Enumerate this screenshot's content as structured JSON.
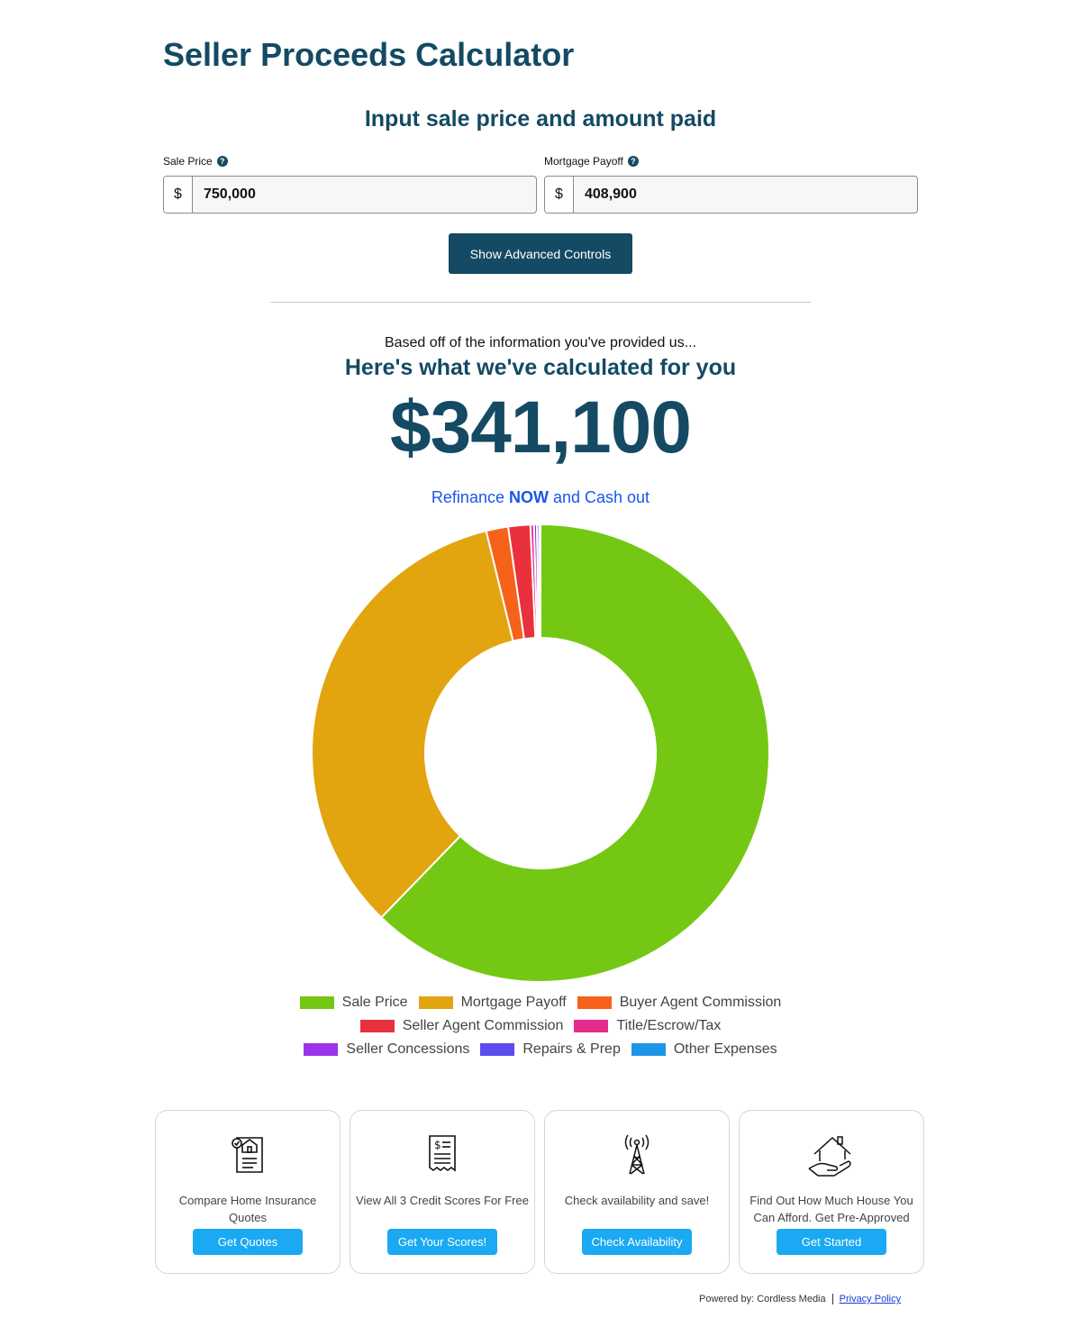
{
  "page": {
    "title": "Seller Proceeds Calculator",
    "subtitle": "Input sale price and amount paid"
  },
  "inputs": {
    "sale_price": {
      "label": "Sale Price",
      "currency": "$",
      "value": "750,000",
      "help": "?"
    },
    "mortgage_payoff": {
      "label": "Mortgage Payoff",
      "currency": "$",
      "value": "408,900",
      "help": "?"
    }
  },
  "advanced_button": "Show Advanced Controls",
  "results": {
    "based_text": "Based off of the information you've provided us...",
    "heading": "Here's what we've calculated for you",
    "amount": "$341,100",
    "refi_pre": "Refinance ",
    "refi_bold": "NOW",
    "refi_post": " and Cash out"
  },
  "chart_data": {
    "type": "pie",
    "labels": [
      "Sale Price",
      "Mortgage Payoff",
      "Buyer Agent Commission",
      "Seller Agent Commission",
      "Title/Escrow/Tax",
      "Seller Concessions",
      "Repairs & Prep",
      "Other Expenses"
    ],
    "values": [
      750000,
      408900,
      18750,
      18750,
      3000,
      2500,
      2000,
      1000
    ],
    "colors": [
      "#74c813",
      "#e2a50f",
      "#f7621b",
      "#e8313c",
      "#e32c8c",
      "#9b33ec",
      "#5b4ded",
      "#1e96e8"
    ],
    "legend_placement": "bottom"
  },
  "cards": [
    {
      "icon": "insurance-document-icon",
      "text": "Compare Home Insurance Quotes",
      "button": "Get Quotes"
    },
    {
      "icon": "credit-receipt-icon",
      "text": "View All 3 Credit Scores For Free",
      "button": "Get Your Scores!"
    },
    {
      "icon": "signal-tower-icon",
      "text": "Check availability and save!",
      "button": "Check Availability"
    },
    {
      "icon": "house-in-hand-icon",
      "text": "Find Out How Much House You Can Afford. Get Pre-Approved",
      "button": "Get Started"
    }
  ],
  "footer": {
    "powered_by": "Powered by: Cordless Media",
    "privacy": "Privacy Policy"
  }
}
